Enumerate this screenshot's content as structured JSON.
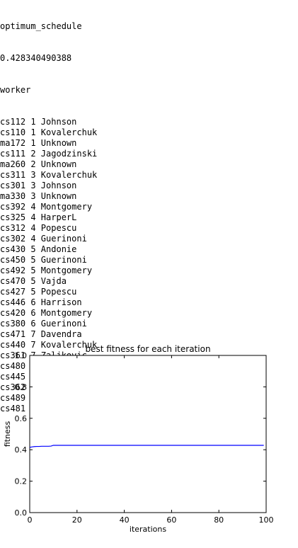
{
  "console": {
    "header": "optimum_schedule",
    "fitness_value": "0.428340490388",
    "column_label": "worker",
    "rows": [
      "cs112 1 Johnson",
      "cs110 1 Kovalerchuk",
      "ma172 1 Unknown",
      "cs111 2 Jagodzinski",
      "ma260 2 Unknown",
      "cs311 3 Kovalerchuk",
      "cs301 3 Johnson",
      "ma330 3 Unknown",
      "cs392 4 Montgomery",
      "cs325 4 HarperL",
      "cs312 4 Popescu",
      "cs302 4 Guerinoni",
      "cs430 5 Andonie",
      "cs450 5 Guerinoni",
      "cs492 5 Montgomery",
      "cs470 5 Vajda",
      "cs427 5 Popescu",
      "cs446 6 Harrison",
      "cs420 6 Montgomery",
      "cs380 6 Guerinoni",
      "cs471 7 Davendra",
      "cs440 7 Kovalerchuk",
      "cs361 7 Zaljkovic",
      "cs480 7 Vajda",
      "cs445 8 Kovalerchuk",
      "cs362 8 Unknown",
      "cs489 8 Unknown",
      "cs481 8 Kovalerchuk"
    ]
  },
  "chart_data": {
    "type": "line",
    "title": "best fitness for each iteration",
    "xlabel": "iterations",
    "ylabel": "fitness",
    "xlim": [
      0,
      100
    ],
    "ylim": [
      0,
      1.0
    ],
    "xticks": [
      "0",
      "20",
      "40",
      "60",
      "80",
      "100"
    ],
    "yticks": [
      "0.0",
      "0.2",
      "0.4",
      "0.6",
      "0.8",
      "1.0"
    ],
    "grid": false,
    "line_color": "#0000ff",
    "series": [
      {
        "x": [
          0,
          1,
          2,
          3,
          4,
          5,
          6,
          7,
          8,
          9,
          10,
          20,
          40,
          60,
          80,
          99
        ],
        "values": [
          0.415,
          0.418,
          0.42,
          0.421,
          0.421,
          0.422,
          0.422,
          0.422,
          0.422,
          0.423,
          0.428,
          0.428,
          0.428,
          0.428,
          0.428,
          0.428
        ]
      }
    ]
  }
}
